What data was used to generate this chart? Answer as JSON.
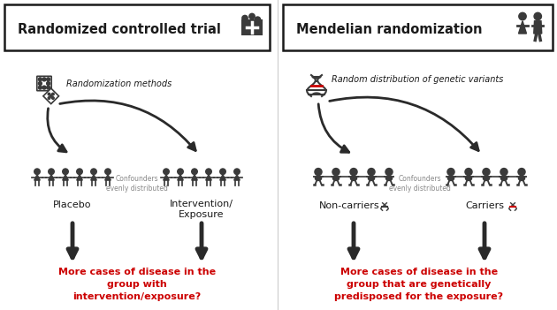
{
  "bg_color": "#ffffff",
  "fig_width": 6.3,
  "fig_height": 3.51,
  "dpi": 100,
  "arrow_color": "#2a2a2a",
  "text_color": "#1a1a1a",
  "red_color": "#cc0000",
  "dark_gray": "#3a3a3a",
  "med_gray": "#555555",
  "light_gray": "#888888",
  "left_title": "Randomized controlled trial",
  "right_title": "Mendelian randomization",
  "left_rand_label": "Randomization methods",
  "right_rand_label": "Random distribution of genetic variants",
  "confounders_label": "Confounders\nevenly distributed",
  "placebo_label": "Placebo",
  "intervention_label": "Intervention/\nExposure",
  "noncarriers_label": "Non-carriers",
  "carriers_label": "Carriers",
  "left_question": "More cases of disease in the\ngroup with\nintervention/exposure?",
  "right_question": "More cases of disease in the\ngroup that are genetically\npredisposed for the exposure?"
}
